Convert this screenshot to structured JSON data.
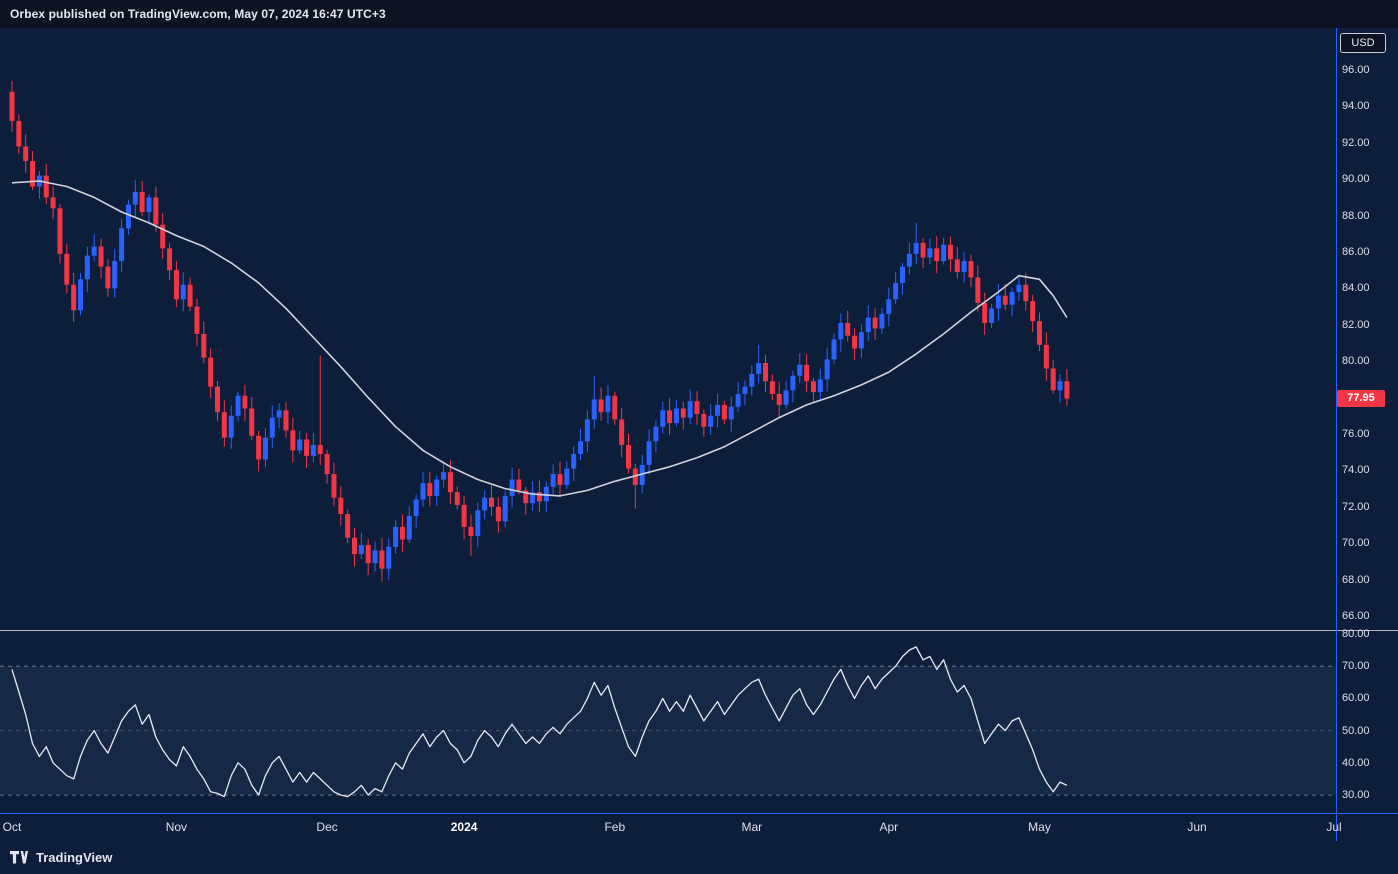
{
  "header": {
    "title": "Orbex published on TradingView.com, May 07, 2024 16:47 UTC+3"
  },
  "footer": {
    "brand": "TradingView"
  },
  "price_axis": {
    "currency": "USD",
    "labels": [
      "96.00",
      "94.00",
      "92.00",
      "90.00",
      "88.00",
      "86.00",
      "84.00",
      "82.00",
      "80.00",
      "76.00",
      "74.00",
      "72.00",
      "70.00",
      "68.00",
      "66.00"
    ],
    "last_price": "77.95"
  },
  "rsi_axis": {
    "labels": [
      "80.00",
      "70.00",
      "60.00",
      "50.00",
      "40.00",
      "30.00"
    ]
  },
  "time_axis": [
    {
      "label": "Oct",
      "bar": 0
    },
    {
      "label": "Nov",
      "bar": 24
    },
    {
      "label": "Dec",
      "bar": 46
    },
    {
      "label": "2024",
      "bar": 66,
      "bold": true
    },
    {
      "label": "Feb",
      "bar": 88
    },
    {
      "label": "Mar",
      "bar": 108
    },
    {
      "label": "Apr",
      "bar": 128
    },
    {
      "label": "May",
      "bar": 150
    },
    {
      "label": "Jun",
      "bar": 173
    },
    {
      "label": "Jul",
      "bar": 193
    }
  ],
  "colors": {
    "background": "#0d1e3a",
    "header_background": "#0d1322",
    "up": "#2962ff",
    "down": "#f23645",
    "sma": "#d1d4dc",
    "rsi_line": "#e8eaf0",
    "rsi_band": "rgba(130,160,220,0.08)",
    "grid_dashed": "#6b7485",
    "grid_faint": "#4a5366",
    "separator": "#b2b5be",
    "accent": "#2962ff",
    "last_price_bg": "#f23645",
    "text": "#dbe0ea"
  },
  "chart_data": [
    {
      "type": "candlestick",
      "y_range": [
        66,
        96
      ],
      "last_price": 77.95,
      "first_open": 94.8,
      "closes": [
        93.2,
        91.8,
        91.0,
        89.6,
        90.2,
        89.0,
        88.4,
        85.9,
        84.2,
        82.8,
        84.5,
        85.8,
        86.3,
        85.2,
        84.0,
        85.5,
        87.3,
        88.6,
        89.3,
        88.2,
        89.0,
        87.5,
        86.2,
        85.0,
        83.4,
        84.2,
        83.0,
        81.5,
        80.2,
        78.6,
        77.2,
        75.8,
        77.0,
        78.1,
        77.4,
        75.9,
        74.6,
        75.8,
        76.9,
        77.3,
        76.2,
        75.1,
        75.7,
        74.8,
        75.4,
        74.9,
        73.8,
        72.5,
        71.6,
        70.3,
        69.4,
        69.9,
        68.9,
        69.6,
        68.6,
        69.8,
        70.9,
        70.2,
        71.5,
        72.4,
        73.3,
        72.6,
        73.5,
        73.9,
        72.8,
        72.1,
        70.9,
        70.4,
        71.8,
        72.5,
        72.0,
        71.2,
        72.6,
        73.5,
        72.9,
        72.2,
        72.8,
        72.3,
        73.1,
        73.8,
        73.2,
        74.1,
        74.9,
        75.6,
        76.8,
        77.9,
        77.2,
        78.1,
        76.8,
        75.4,
        74.1,
        73.2,
        74.3,
        75.6,
        76.4,
        77.3,
        76.6,
        77.4,
        76.9,
        77.8,
        77.1,
        76.4,
        77.0,
        77.6,
        76.8,
        77.5,
        78.2,
        78.6,
        79.3,
        79.9,
        78.9,
        78.2,
        77.6,
        78.4,
        79.2,
        79.8,
        78.9,
        78.3,
        79.0,
        80.1,
        81.2,
        82.1,
        81.4,
        80.7,
        81.6,
        82.4,
        81.8,
        82.6,
        83.4,
        84.3,
        85.2,
        85.9,
        86.5,
        85.7,
        86.2,
        85.5,
        86.4,
        85.6,
        84.9,
        85.5,
        84.6,
        83.2,
        82.1,
        82.9,
        83.6,
        83.1,
        83.8,
        84.2,
        83.3,
        82.2,
        80.9,
        79.6,
        78.4,
        78.9,
        77.95
      ],
      "spikes": {
        "0": {
          "high": 95.4
        },
        "45": {
          "high": 80.3
        },
        "54": {
          "low": 67.9
        },
        "67": {
          "low": 69.3
        },
        "85": {
          "high": 79.2
        },
        "91": {
          "low": 71.9
        },
        "109": {
          "high": 80.9
        },
        "132": {
          "high": 87.6
        }
      },
      "sma_points": [
        [
          0,
          89.8
        ],
        [
          4,
          89.9
        ],
        [
          8,
          89.6
        ],
        [
          12,
          89.0
        ],
        [
          16,
          88.2
        ],
        [
          20,
          87.6
        ],
        [
          24,
          86.9
        ],
        [
          28,
          86.3
        ],
        [
          32,
          85.4
        ],
        [
          36,
          84.3
        ],
        [
          40,
          82.9
        ],
        [
          44,
          81.3
        ],
        [
          48,
          79.7
        ],
        [
          52,
          78.0
        ],
        [
          56,
          76.4
        ],
        [
          60,
          75.1
        ],
        [
          64,
          74.2
        ],
        [
          68,
          73.5
        ],
        [
          72,
          73.0
        ],
        [
          76,
          72.7
        ],
        [
          80,
          72.6
        ],
        [
          84,
          72.9
        ],
        [
          88,
          73.4
        ],
        [
          92,
          73.8
        ],
        [
          96,
          74.2
        ],
        [
          100,
          74.7
        ],
        [
          104,
          75.3
        ],
        [
          108,
          76.1
        ],
        [
          112,
          76.9
        ],
        [
          116,
          77.6
        ],
        [
          120,
          78.1
        ],
        [
          124,
          78.7
        ],
        [
          128,
          79.4
        ],
        [
          132,
          80.4
        ],
        [
          136,
          81.5
        ],
        [
          140,
          82.7
        ],
        [
          144,
          83.8
        ],
        [
          147,
          84.7
        ],
        [
          150,
          84.5
        ],
        [
          152,
          83.6
        ],
        [
          154,
          82.4
        ]
      ]
    },
    {
      "type": "line",
      "name": "oscillator",
      "y_range": [
        30,
        80
      ],
      "band": [
        30,
        70
      ],
      "levels": [
        70,
        50,
        30
      ],
      "values": [
        69,
        62,
        55,
        46,
        42,
        45,
        40,
        38,
        36,
        35,
        42,
        47,
        50,
        46,
        43,
        48,
        53,
        56,
        58,
        52,
        55,
        48,
        44,
        41,
        39,
        45,
        42,
        38,
        35,
        31,
        30.5,
        29.5,
        36,
        40,
        38,
        33,
        30,
        36,
        40,
        42,
        38,
        34,
        37,
        34,
        37,
        35,
        33,
        31,
        30,
        29.5,
        31,
        33,
        30,
        32,
        31,
        36,
        40,
        38,
        43,
        46,
        49,
        45,
        48,
        50,
        46,
        44,
        40,
        42,
        47,
        50,
        48,
        45,
        49,
        52,
        49,
        46,
        48,
        46,
        49,
        51,
        49,
        52,
        54,
        56,
        60,
        65,
        61,
        64,
        57,
        51,
        45,
        42,
        48,
        53,
        56,
        60,
        56,
        59,
        56,
        61,
        57,
        53,
        56,
        59,
        55,
        58,
        61,
        63,
        65,
        66,
        61,
        57,
        53,
        57,
        61,
        63,
        58,
        55,
        58,
        62,
        66,
        69,
        64,
        60,
        64,
        67,
        63,
        66,
        68,
        70,
        73,
        75,
        76,
        72,
        73,
        69,
        72,
        66,
        62,
        64,
        60,
        53,
        46,
        49,
        52,
        50,
        53,
        54,
        49,
        44,
        38,
        34,
        31,
        34,
        33
      ]
    }
  ]
}
